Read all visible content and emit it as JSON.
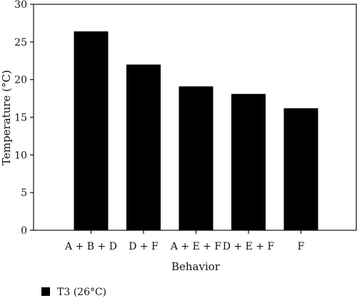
{
  "chart_data": {
    "type": "bar",
    "categories": [
      "A + B + D",
      "D + F",
      "A + E + F",
      "D + E + F",
      "F"
    ],
    "series": [
      {
        "name": "T3 (26°C)",
        "values": [
          26.4,
          22.0,
          19.1,
          18.1,
          16.2
        ]
      }
    ],
    "xlabel": "Behavior",
    "ylabel": "Temperature (°C)",
    "ylim": [
      0,
      30
    ],
    "yticks": [
      "0",
      "5",
      "10",
      "15",
      "20",
      "25",
      "30"
    ],
    "grid": false,
    "legend_placement": "bottom-left",
    "colors": {
      "bar": "#000000",
      "axis": "#111111"
    }
  }
}
